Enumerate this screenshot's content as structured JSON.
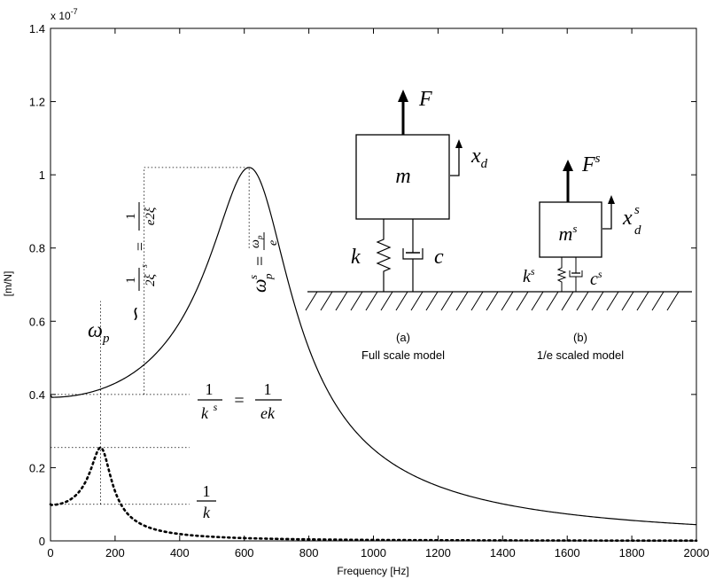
{
  "chart_data": {
    "type": "line",
    "xlabel": "Frequency [Hz]",
    "ylabel": "[m/N]",
    "exponent_label": "x 10",
    "exponent_power": "-7",
    "xlim": [
      0,
      2000
    ],
    "ylim": [
      0,
      1.4
    ],
    "grid": false,
    "x_ticks": [
      0,
      200,
      400,
      600,
      800,
      1000,
      1200,
      1400,
      1600,
      1800,
      2000
    ],
    "y_ticks": [
      0,
      0.2,
      0.4,
      0.6,
      0.8,
      1,
      1.2,
      1.4
    ],
    "x_tick_labels": [
      "0",
      "200",
      "400",
      "600",
      "800",
      "1000",
      "1200",
      "1400",
      "1600",
      "1800",
      "2000"
    ],
    "y_tick_labels": [
      "0",
      "0.2",
      "0.4",
      "0.6",
      "0.8",
      "1",
      "1.2",
      "1.4"
    ],
    "series": [
      {
        "style": "solid",
        "color": "#000000",
        "model": {
          "static": 0.4,
          "peak_freq": 615,
          "peak": 1.02,
          "zeta": 0.196
        },
        "points": [
          [
            0,
            0.4
          ],
          [
            200,
            0.43
          ],
          [
            400,
            0.6
          ],
          [
            500,
            0.78
          ],
          [
            600,
            1.02
          ],
          [
            700,
            0.84
          ],
          [
            800,
            0.62
          ],
          [
            1000,
            0.33
          ],
          [
            1200,
            0.21
          ],
          [
            1400,
            0.14
          ],
          [
            1600,
            0.1
          ],
          [
            1800,
            0.07
          ],
          [
            2000,
            0.05
          ]
        ]
      },
      {
        "style": "dotted",
        "color": "#000000",
        "model": {
          "static": 0.1,
          "peak_freq": 155,
          "peak": 0.255,
          "zeta": 0.196
        },
        "points": [
          [
            0,
            0.1
          ],
          [
            100,
            0.15
          ],
          [
            155,
            0.255
          ],
          [
            200,
            0.2
          ],
          [
            300,
            0.05
          ],
          [
            400,
            0.02
          ],
          [
            600,
            0.005
          ],
          [
            1000,
            0.001
          ],
          [
            2000,
            0.0
          ]
        ]
      }
    ],
    "reference_lines": [
      {
        "style": "dotted",
        "orientation": "h",
        "y": 1.02,
        "from_x": 290,
        "to_x": 615
      },
      {
        "style": "dotted",
        "orientation": "v",
        "x": 615,
        "from_y": 0.8,
        "to_y": 1.02
      },
      {
        "style": "dotted",
        "orientation": "v",
        "x": 290,
        "from_y": 0.4,
        "to_y": 1.02
      },
      {
        "style": "dotted",
        "orientation": "h",
        "y": 0.4,
        "from_x": 0,
        "to_x": 430
      },
      {
        "style": "dotted",
        "orientation": "h",
        "y": 0.255,
        "from_x": 0,
        "to_x": 430
      },
      {
        "style": "dotted",
        "orientation": "v",
        "x": 155,
        "from_y": 0.1,
        "to_y": 0.655
      },
      {
        "style": "dotted",
        "orientation": "h",
        "y": 0.1,
        "from_x": 0,
        "to_x": 430
      }
    ],
    "annotations": {
      "omega_p": "ω",
      "omega_p_sub": "p",
      "one": "1",
      "k": "k",
      "k_s_base": "k",
      "s_sup": "s",
      "equals": "=",
      "ek": "ek",
      "two_xi_s": "2ξ",
      "e_two_xi": "e2ξ",
      "approx": "∽",
      "omega_p_s_base": "ω",
      "omega_p_s_sub": "p",
      "omega_p_s_frac_num": "ω",
      "omega_p_s_frac_sub": "p",
      "omega_p_s_frac_den": "e"
    },
    "inset": {
      "full": {
        "force": "F",
        "mass": "m",
        "disp": "x",
        "disp_sub": "d",
        "spring": "k",
        "damper": "c",
        "caption_letter": "(a)",
        "caption": "Full scale model"
      },
      "scaled": {
        "force": "F",
        "force_sup": "s",
        "mass": "m",
        "mass_sup": "s",
        "disp": "x",
        "disp_sup": "s",
        "disp_sub": "d",
        "spring": "k",
        "spring_sup": "s",
        "damper": "c",
        "damper_sup": "s",
        "caption_letter": "(b)",
        "caption": "1/e scaled model"
      }
    }
  }
}
